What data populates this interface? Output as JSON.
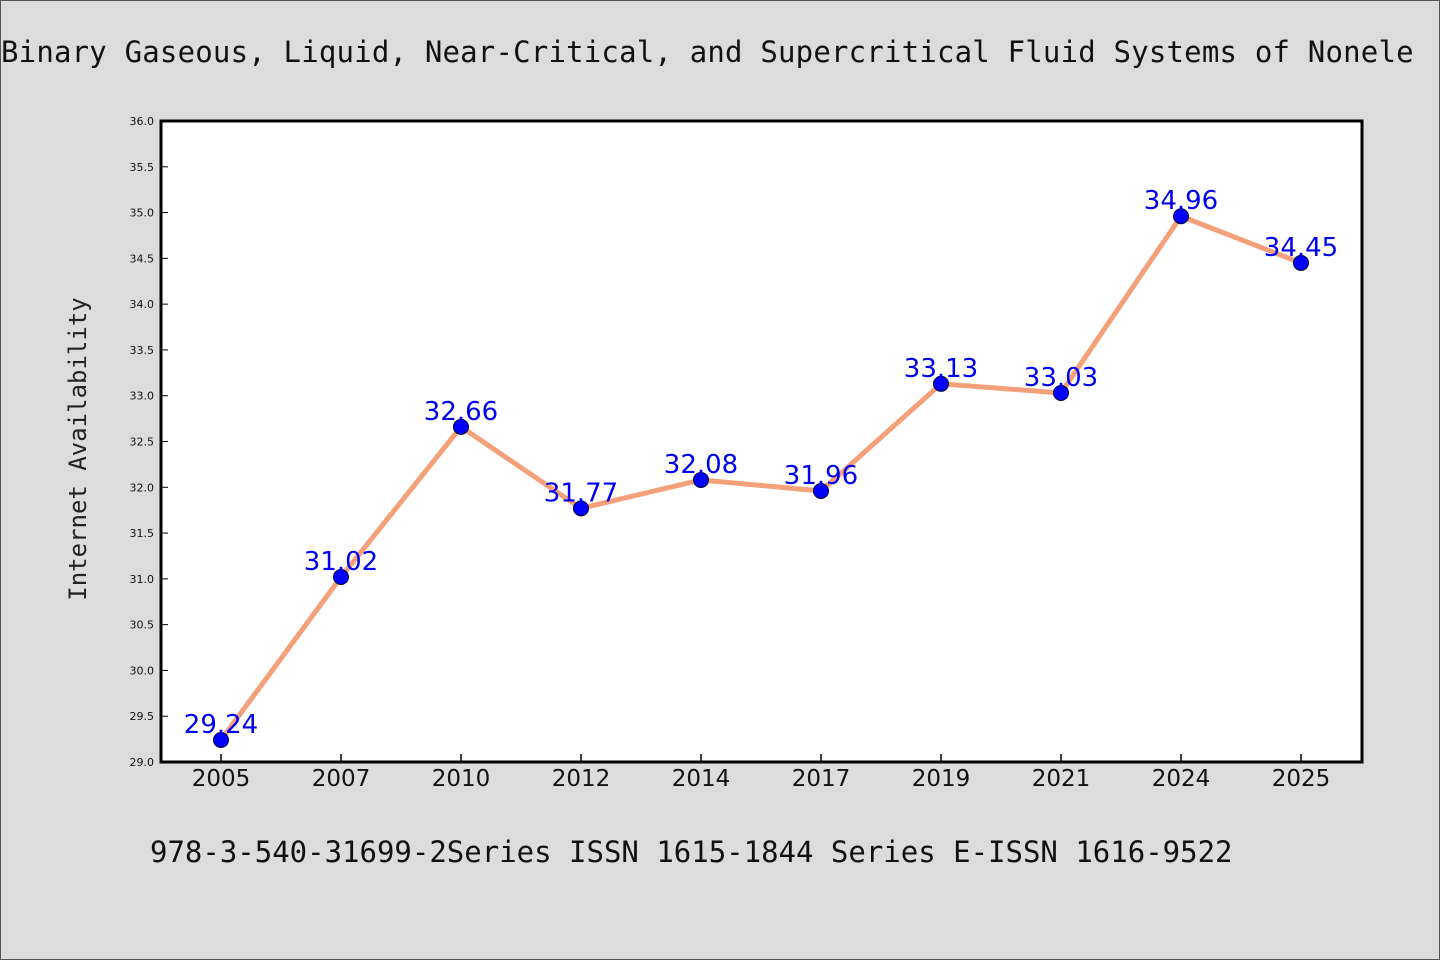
{
  "chart_data": {
    "type": "line",
    "title": "Binary Gaseous, Liquid, Near-Critical, and Supercritical Fluid Systems of Nonele",
    "footer": "978-3-540-31699-2Series ISSN 1615-1844 Series E-ISSN 1616-9522",
    "xlabel": "",
    "ylabel": "Internet Availability",
    "categories": [
      "2005",
      "2007",
      "2010",
      "2012",
      "2014",
      "2017",
      "2019",
      "2021",
      "2024",
      "2025"
    ],
    "series": [
      {
        "values": [
          29.24,
          31.02,
          32.66,
          31.77,
          32.08,
          31.96,
          33.13,
          33.03,
          34.96,
          34.45
        ],
        "data_labels": [
          "29.24",
          "31.02",
          "32.66",
          "31.77",
          "32.08",
          "31.96",
          "33.13",
          "33.03",
          "34.96",
          "34.45"
        ]
      }
    ],
    "ylim": [
      29.0,
      36.0
    ],
    "yticks": [
      "29.0",
      "29.5",
      "30.0",
      "30.5",
      "31.0",
      "31.5",
      "32.0",
      "32.5",
      "33.0",
      "33.5",
      "34.0",
      "34.5",
      "35.0",
      "35.5",
      "36.0"
    ],
    "grid": false,
    "legend": "none",
    "colors": {
      "line": "#f4a07a",
      "marker": "#0000ff",
      "data_label": "#0000ee",
      "background": "#dcdcdc",
      "plot_background": "#ffffff"
    }
  }
}
